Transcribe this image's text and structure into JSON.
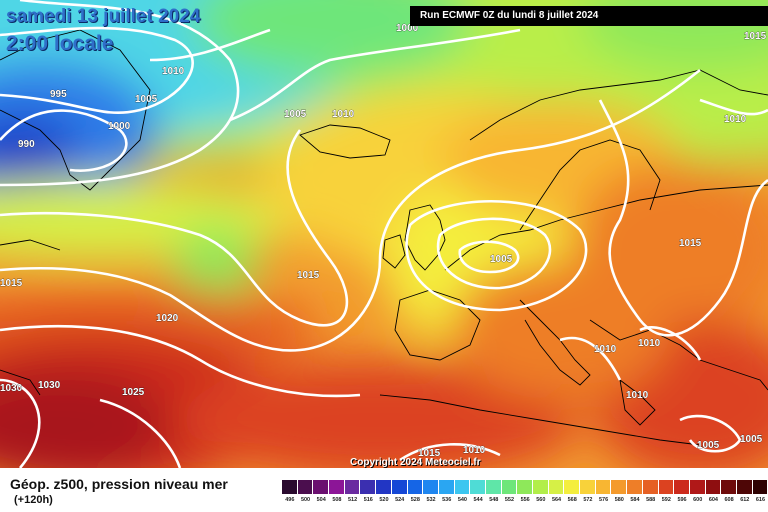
{
  "header": {
    "date": "samedi 13 juillet 2024",
    "hour": "2:00 locale",
    "run": "Run ECMWF 0Z du lundi 8 juillet 2024"
  },
  "copyright": "Copyright 2024 Meteociel.fr",
  "legend": {
    "title": "Géop. z500, pression niveau mer",
    "subtitle": "(+120h)",
    "scale_labels": [
      "496",
      "500",
      "504",
      "508",
      "512",
      "516",
      "520",
      "524",
      "528",
      "532",
      "536",
      "540",
      "544",
      "548",
      "552",
      "556",
      "560",
      "564",
      "568",
      "572",
      "576",
      "580",
      "584",
      "588",
      "592",
      "596",
      "600",
      "604",
      "608",
      "612",
      "616"
    ],
    "scale_colors": [
      "#2a0a2e",
      "#4b0e4e",
      "#6b0f70",
      "#8c1597",
      "#6a2aa0",
      "#3b2fb0",
      "#2236c4",
      "#1447d6",
      "#1565e6",
      "#1e86f0",
      "#2aa6f2",
      "#3cc6f0",
      "#4fdcd6",
      "#5fe6a8",
      "#6ee67a",
      "#8ee85a",
      "#b2ee4a",
      "#d6f046",
      "#f4ee3e",
      "#f8d23a",
      "#f8b632",
      "#f49a2c",
      "#ee7e28",
      "#e66024",
      "#dc4220",
      "#cc2a1c",
      "#b01818",
      "#8e0e10",
      "#6e0a0a",
      "#4e0606",
      "#2e0202"
    ]
  },
  "map": {
    "pressure_labels": [
      "1010",
      "1005",
      "1000",
      "995",
      "990",
      "1005",
      "1010",
      "1015",
      "1020",
      "1025",
      "1030",
      "1030",
      "1005",
      "1015",
      "1010",
      "1010",
      "1010",
      "1005",
      "1005",
      "1015",
      "1010",
      "1000",
      "1015",
      "1015",
      "1010"
    ]
  }
}
